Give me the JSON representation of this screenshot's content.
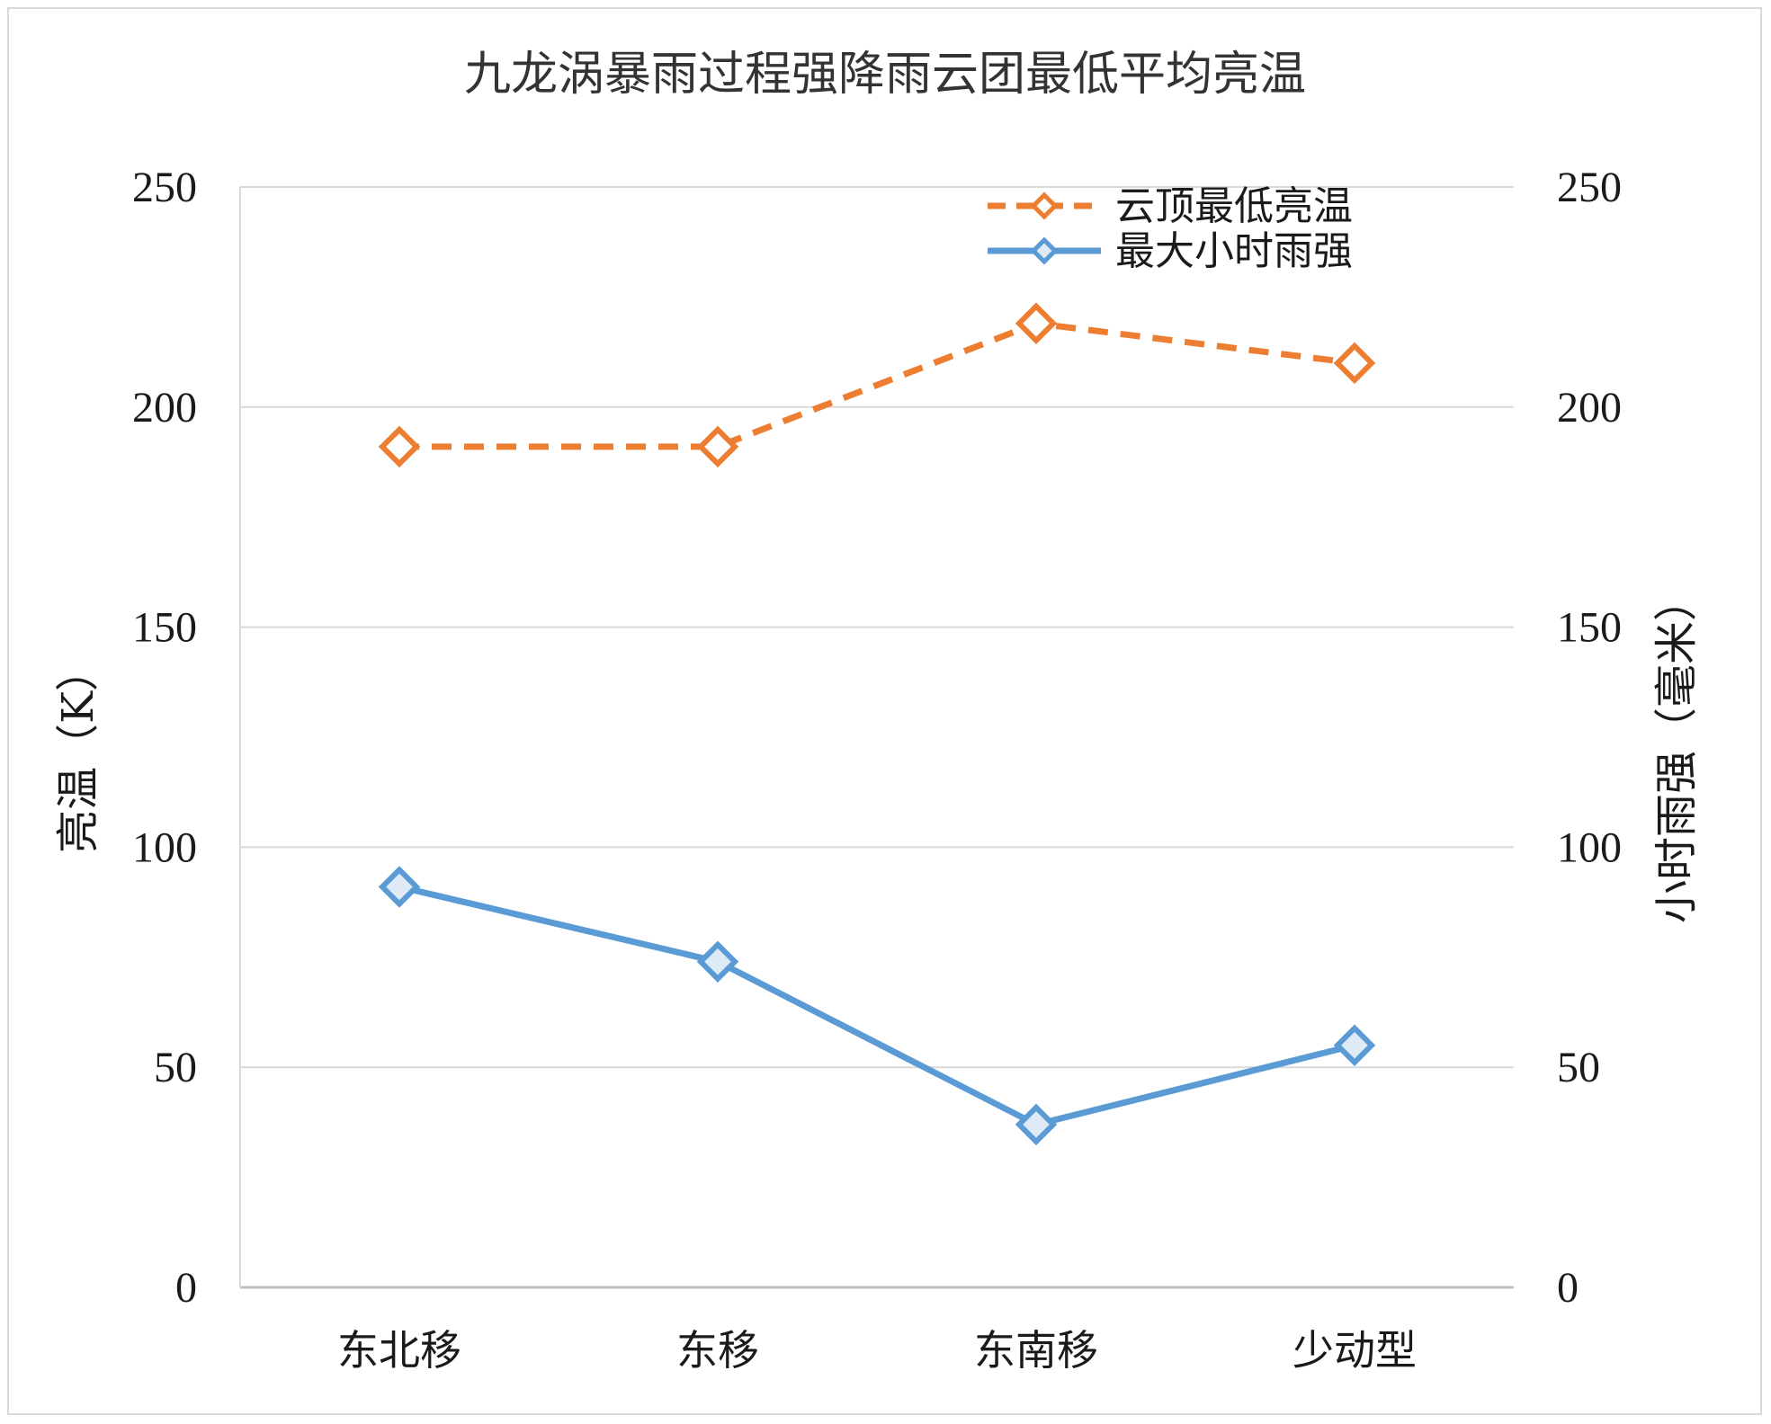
{
  "chart_data": {
    "type": "line",
    "title": "九龙涡暴雨过程强降雨云团最低平均亮温",
    "categories": [
      "东北移",
      "东移",
      "东南移",
      "少动型"
    ],
    "y_left": {
      "label": "亮温（K）",
      "range": [
        0,
        250
      ],
      "ticks": [
        "0",
        "50",
        "100",
        "150",
        "200",
        "250"
      ]
    },
    "y_right": {
      "label": "小时雨强（毫米）",
      "range": [
        0,
        250
      ],
      "ticks": [
        "0",
        "50",
        "100",
        "150",
        "200",
        "250"
      ]
    },
    "grid": true,
    "legend_position": "top-right",
    "series": [
      {
        "name": "云顶最低亮温",
        "axis": "left",
        "values": [
          191,
          191,
          219,
          210
        ],
        "color": "#ED7D31",
        "line_style": "dashed",
        "marker": "diamond"
      },
      {
        "name": "最大小时雨强",
        "axis": "right",
        "values": [
          91,
          74,
          37,
          55
        ],
        "color": "#5B9BD5",
        "line_style": "solid",
        "marker": "diamond"
      }
    ]
  }
}
